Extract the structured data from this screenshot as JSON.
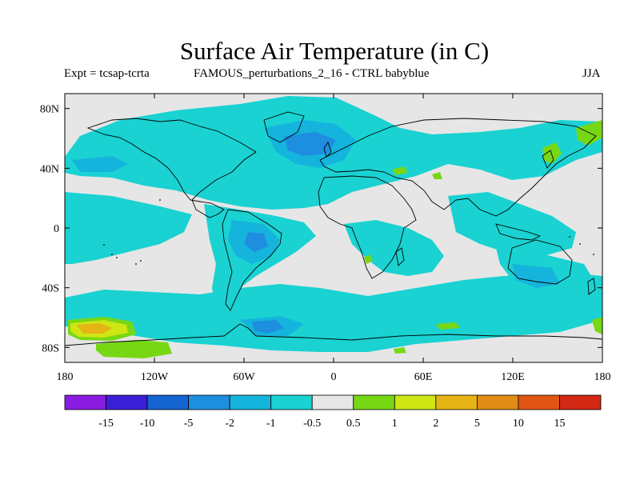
{
  "title": "Surface Air Temperature (in C)",
  "subtitle_left": "Expt = tcsap-tcrta",
  "subtitle_center": "FAMOUS_perturbations_2_16 - CTRL babyblue",
  "season": "JJA",
  "map": {
    "lon_range": [
      -180,
      180
    ],
    "lat_range": [
      -90,
      90
    ],
    "lon_ticks": [
      {
        "value": -180,
        "label": "180"
      },
      {
        "value": -120,
        "label": "120W"
      },
      {
        "value": -60,
        "label": "60W"
      },
      {
        "value": 0,
        "label": "0"
      },
      {
        "value": 60,
        "label": "60E"
      },
      {
        "value": 120,
        "label": "120E"
      },
      {
        "value": 180,
        "label": "180"
      }
    ],
    "lat_ticks": [
      {
        "value": 80,
        "label": "80N"
      },
      {
        "value": 40,
        "label": "40N"
      },
      {
        "value": 0,
        "label": "0"
      },
      {
        "value": -40,
        "label": "40S"
      },
      {
        "value": -80,
        "label": "80S"
      }
    ]
  },
  "colorbar": {
    "colors": [
      "#8a1be0",
      "#3a1fd6",
      "#1464d2",
      "#1e8ee0",
      "#14b4dc",
      "#1ad2d2",
      "#e6e6e6",
      "#78d714",
      "#cde614",
      "#e6b414",
      "#e18c14",
      "#e05514",
      "#d22814"
    ],
    "labels": [
      "-15",
      "-10",
      "-5",
      "-2",
      "-1",
      "-0.5",
      "0.5",
      "1",
      "2",
      "5",
      "10",
      "15"
    ]
  }
}
